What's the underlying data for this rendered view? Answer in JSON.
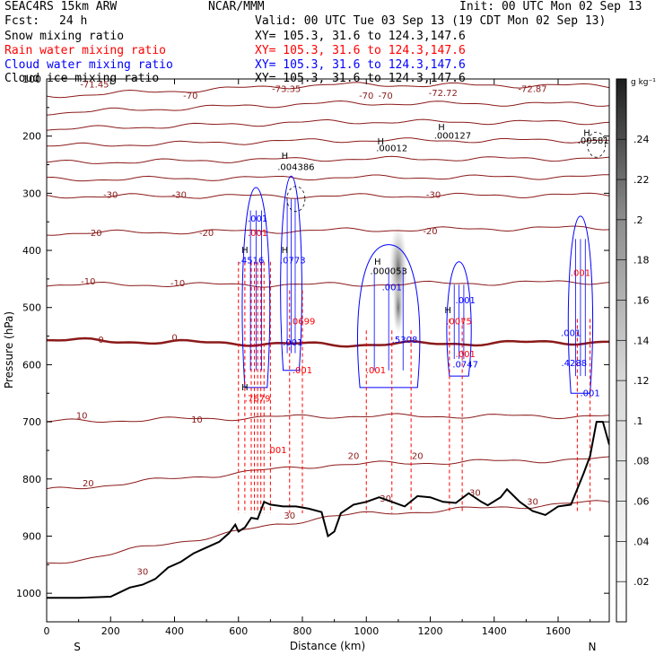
{
  "header": {
    "model": "SEAC4RS 15km ARW",
    "center": "NCAR/MMM",
    "init": "Init: 00 UTC Mon 02 Sep 13",
    "fcst_label": "Fcst:",
    "fcst_value": "24 h",
    "valid": "Valid: 00 UTC Tue 03 Sep 13 (19 CDT Mon 02 Sep 13)",
    "fields": [
      {
        "name": "Snow mixing ratio",
        "xy": "XY= 105.3, 31.6 to 124.3,147.6",
        "color": "#000000"
      },
      {
        "name": "Rain water mixing ratio",
        "xy": "XY= 105.3, 31.6 to 124.3,147.6",
        "color": "#ff0000"
      },
      {
        "name": "Cloud water mixing ratio",
        "xy": "XY= 105.3, 31.6 to 124.3,147.6",
        "color": "#0000ff"
      },
      {
        "name": "Cloud ice mixing ratio",
        "xy": "XY= 105.3, 31.6 to 124.3,147.6",
        "color": "#000000"
      }
    ]
  },
  "chart_data": {
    "type": "cross-section",
    "xlabel": "Distance (km)",
    "ylabel": "Pressure (hPa)",
    "xlim": [
      0,
      1760
    ],
    "ylim": [
      1050,
      100
    ],
    "x_ticks": [
      0,
      200,
      400,
      600,
      800,
      1000,
      1200,
      1400,
      1600
    ],
    "y_ticks": [
      100,
      200,
      300,
      400,
      500,
      600,
      700,
      800,
      900,
      1000
    ],
    "end_labels": {
      "left": "S",
      "right": "N"
    },
    "colorbar": {
      "unit": "g kg⁻¹",
      "ticks": [
        ".02",
        ".04",
        ".06",
        ".08",
        ".1",
        ".12",
        ".14",
        ".16",
        ".18",
        ".2",
        ".22",
        ".24"
      ],
      "min": 0,
      "max": 0.27
    },
    "temperature_contours": [
      {
        "label": "-70",
        "p": [
          130,
          110,
          112
        ]
      },
      {
        "label": "-30",
        "p": [
          305,
          305,
          303
        ]
      },
      {
        "label": "-20",
        "p": [
          370,
          365,
          360
        ]
      },
      {
        "label": "-10",
        "p": [
          460,
          460,
          455
        ]
      },
      {
        "label": "0",
        "p": [
          557,
          565,
          560
        ]
      },
      {
        "label": "10",
        "p": [
          700,
          690,
          690
        ]
      },
      {
        "label": "20",
        "p": [
          820,
          775,
          765
        ]
      },
      {
        "label": "30",
        "p": [
          950,
          865,
          840
        ]
      }
    ],
    "contour_labels": [
      {
        "text": "-71.45",
        "x": 150,
        "p": 110
      },
      {
        "text": "-70",
        "x": 450,
        "p": 130
      },
      {
        "text": "-73.35",
        "x": 750,
        "p": 118
      },
      {
        "text": "-70",
        "x": 1000,
        "p": 130
      },
      {
        "text": "-70",
        "x": 1060,
        "p": 130
      },
      {
        "text": "-72.72",
        "x": 1240,
        "p": 125
      },
      {
        "text": "-72.87",
        "x": 1520,
        "p": 118
      },
      {
        "text": "-30",
        "x": 200,
        "p": 303
      },
      {
        "text": "-30",
        "x": 415,
        "p": 303
      },
      {
        "text": "-30",
        "x": 1210,
        "p": 303
      },
      {
        "text": "-20",
        "x": 150,
        "p": 370
      },
      {
        "text": "-20",
        "x": 500,
        "p": 370
      },
      {
        "text": "-20",
        "x": 1200,
        "p": 367
      },
      {
        "text": "-10",
        "x": 130,
        "p": 455
      },
      {
        "text": "-10",
        "x": 410,
        "p": 458
      },
      {
        "text": "0",
        "x": 170,
        "p": 557
      },
      {
        "text": "0",
        "x": 400,
        "p": 553
      },
      {
        "text": "10",
        "x": 110,
        "p": 690
      },
      {
        "text": "10",
        "x": 470,
        "p": 697
      },
      {
        "text": "20",
        "x": 130,
        "p": 808
      },
      {
        "text": "20",
        "x": 960,
        "p": 760
      },
      {
        "text": "20",
        "x": 1160,
        "p": 760
      },
      {
        "text": "30",
        "x": 300,
        "p": 963
      },
      {
        "text": "30",
        "x": 1060,
        "p": 835
      },
      {
        "text": "30",
        "x": 1340,
        "p": 825
      },
      {
        "text": "30",
        "x": 1520,
        "p": 840
      },
      {
        "text": "30",
        "x": 760,
        "p": 865
      }
    ],
    "max_labels": [
      {
        "text": ".004386",
        "x": 780,
        "p": 255,
        "color": "#000000"
      },
      {
        "text": ".00012",
        "x": 1080,
        "p": 222,
        "color": "#000000"
      },
      {
        "text": ".000127",
        "x": 1270,
        "p": 200,
        "color": "#000000"
      },
      {
        "text": ".00581",
        "x": 1710,
        "p": 208,
        "color": "#000000"
      },
      {
        "text": ".000053",
        "x": 1070,
        "p": 437,
        "color": "#000000"
      },
      {
        "text": ".001",
        "x": 660,
        "p": 345,
        "color": "#0000ff"
      },
      {
        "text": ".001",
        "x": 660,
        "p": 370,
        "color": "#ff0000"
      },
      {
        "text": ".4516",
        "x": 640,
        "p": 418,
        "color": "#0000ff"
      },
      {
        "text": ".0773",
        "x": 770,
        "p": 418,
        "color": "#0000ff"
      },
      {
        "text": ".0699",
        "x": 800,
        "p": 525,
        "color": "#ff0000"
      },
      {
        "text": ".001",
        "x": 770,
        "p": 562,
        "color": "#0000ff"
      },
      {
        "text": ".001",
        "x": 800,
        "p": 610,
        "color": "#ff0000"
      },
      {
        "text": ".7679",
        "x": 660,
        "p": 660,
        "color": "#ff0000"
      },
      {
        "text": ".001",
        "x": 720,
        "p": 750,
        "color": "#ff0000"
      },
      {
        "text": ".001",
        "x": 1030,
        "p": 610,
        "color": "#ff0000"
      },
      {
        "text": ".001",
        "x": 1080,
        "p": 465,
        "color": "#0000ff"
      },
      {
        "text": ".5308",
        "x": 1120,
        "p": 557,
        "color": "#0000ff"
      },
      {
        "text": ".001",
        "x": 1310,
        "p": 488,
        "color": "#0000ff"
      },
      {
        "text": ".0075",
        "x": 1290,
        "p": 525,
        "color": "#ff0000"
      },
      {
        "text": ".001",
        "x": 1310,
        "p": 582,
        "color": "#ff0000"
      },
      {
        "text": ".0747",
        "x": 1310,
        "p": 600,
        "color": "#0000ff"
      },
      {
        "text": ".001",
        "x": 1670,
        "p": 440,
        "color": "#ff0000"
      },
      {
        "text": ".001",
        "x": 1640,
        "p": 545,
        "color": "#0000ff"
      },
      {
        "text": ".4288",
        "x": 1650,
        "p": 598,
        "color": "#0000ff"
      },
      {
        "text": ".001",
        "x": 1700,
        "p": 650,
        "color": "#0000ff"
      }
    ],
    "h_marks": [
      {
        "x": 745,
        "p": 235
      },
      {
        "x": 1045,
        "p": 210
      },
      {
        "x": 1235,
        "p": 185
      },
      {
        "x": 1690,
        "p": 195
      },
      {
        "x": 1035,
        "p": 420
      },
      {
        "x": 620,
        "p": 400
      },
      {
        "x": 745,
        "p": 400
      },
      {
        "x": 1255,
        "p": 505
      },
      {
        "x": 620,
        "p": 640
      }
    ],
    "terrain": [
      [
        0,
        1008
      ],
      [
        100,
        1008
      ],
      [
        200,
        1006
      ],
      [
        260,
        990
      ],
      [
        300,
        985
      ],
      [
        340,
        975
      ],
      [
        380,
        955
      ],
      [
        420,
        945
      ],
      [
        460,
        930
      ],
      [
        500,
        920
      ],
      [
        540,
        910
      ],
      [
        570,
        895
      ],
      [
        590,
        880
      ],
      [
        600,
        892
      ],
      [
        620,
        885
      ],
      [
        640,
        868
      ],
      [
        660,
        870
      ],
      [
        680,
        840
      ],
      [
        700,
        845
      ],
      [
        740,
        848
      ],
      [
        780,
        848
      ],
      [
        820,
        852
      ],
      [
        860,
        858
      ],
      [
        880,
        900
      ],
      [
        900,
        892
      ],
      [
        920,
        860
      ],
      [
        960,
        845
      ],
      [
        1000,
        840
      ],
      [
        1040,
        832
      ],
      [
        1080,
        840
      ],
      [
        1120,
        848
      ],
      [
        1160,
        830
      ],
      [
        1200,
        832
      ],
      [
        1240,
        840
      ],
      [
        1280,
        842
      ],
      [
        1320,
        825
      ],
      [
        1360,
        840
      ],
      [
        1380,
        846
      ],
      [
        1420,
        832
      ],
      [
        1440,
        818
      ],
      [
        1480,
        840
      ],
      [
        1520,
        856
      ],
      [
        1560,
        863
      ],
      [
        1600,
        848
      ],
      [
        1640,
        845
      ],
      [
        1680,
        790
      ],
      [
        1700,
        760
      ],
      [
        1720,
        700
      ],
      [
        1740,
        700
      ],
      [
        1760,
        740
      ]
    ]
  }
}
